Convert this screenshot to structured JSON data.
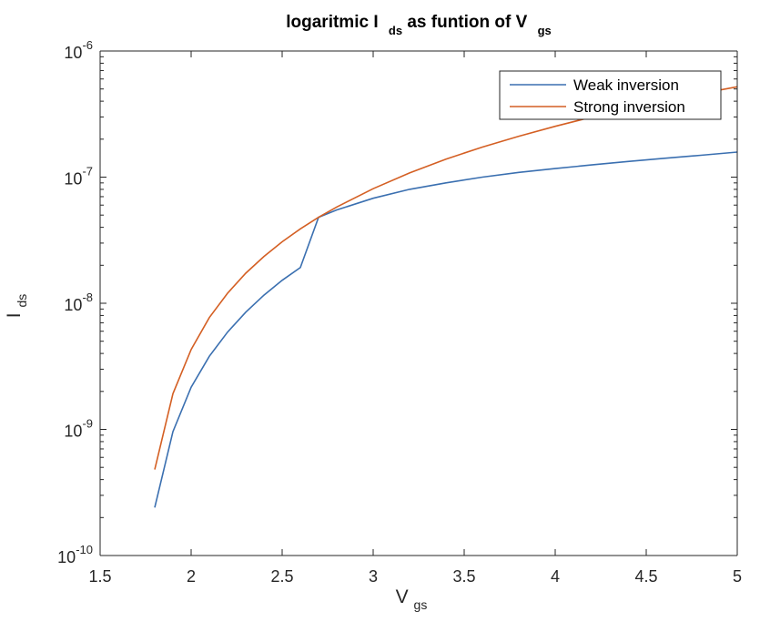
{
  "chart_data": {
    "type": "line",
    "title": {
      "text1": "logaritmic I",
      "sub1": "ds",
      "text2": " as funtion of V",
      "sub2": "gs"
    },
    "xlabel": {
      "main": "V",
      "sub": "gs"
    },
    "ylabel": {
      "main": "I",
      "sub": "ds"
    },
    "xlim": [
      1.5,
      5
    ],
    "ylim": [
      1e-10,
      1e-06
    ],
    "yscale": "log",
    "xticks": [
      "1.5",
      "2",
      "2.5",
      "3",
      "3.5",
      "4",
      "4.5",
      "5"
    ],
    "yticks": [
      {
        "base": "10",
        "exp": "-10"
      },
      {
        "base": "10",
        "exp": "-9"
      },
      {
        "base": "10",
        "exp": "-8"
      },
      {
        "base": "10",
        "exp": "-7"
      },
      {
        "base": "10",
        "exp": "-6"
      }
    ],
    "grid": false,
    "legend_position": "top-right",
    "series": [
      {
        "name": "Weak inversion",
        "color": "#3a6fb0",
        "x": [
          1.8,
          1.9,
          2.0,
          2.1,
          2.2,
          2.3,
          2.4,
          2.5,
          2.6,
          2.7,
          2.8,
          3.0,
          3.2,
          3.4,
          3.6,
          3.8,
          4.0,
          4.2,
          4.4,
          4.6,
          4.8,
          5.0
        ],
        "y": [
          2.4e-10,
          9.6e-10,
          2.16e-09,
          3.8e-09,
          5.9e-09,
          8.5e-09,
          1.16e-08,
          1.52e-08,
          1.92e-08,
          4.8e-08,
          5.5e-08,
          6.8e-08,
          8e-08,
          9e-08,
          1e-07,
          1.09e-07,
          1.17e-07,
          1.25e-07,
          1.33e-07,
          1.41e-07,
          1.49e-07,
          1.58e-07
        ]
      },
      {
        "name": "Strong inversion",
        "color": "#d45f23",
        "x": [
          1.8,
          1.9,
          2.0,
          2.1,
          2.2,
          2.3,
          2.4,
          2.5,
          2.6,
          2.7,
          2.8,
          3.0,
          3.2,
          3.4,
          3.6,
          3.8,
          4.0,
          4.2,
          4.4,
          4.6,
          4.8,
          5.0
        ],
        "y": [
          4.8e-10,
          1.92e-09,
          4.3e-09,
          7.7e-09,
          1.2e-08,
          1.73e-08,
          2.35e-08,
          3.07e-08,
          3.89e-08,
          4.8e-08,
          5.8e-08,
          8.1e-08,
          1.08e-07,
          1.39e-07,
          1.73e-07,
          2.11e-07,
          2.53e-07,
          2.99e-07,
          3.49e-07,
          4.02e-07,
          4.6e-07,
          5.2e-07
        ]
      }
    ]
  }
}
